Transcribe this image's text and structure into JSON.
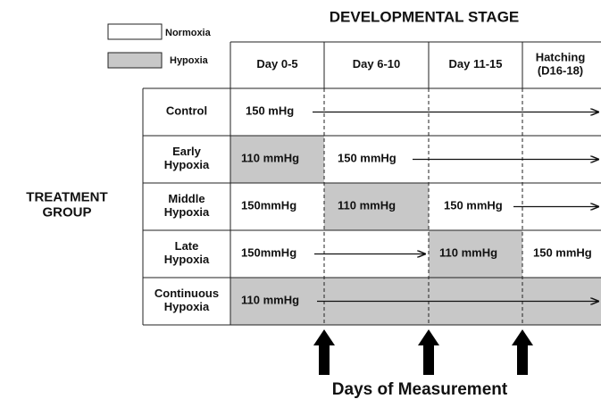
{
  "legend": [
    {
      "label": "Normoxia"
    },
    {
      "label": "Hypoxia"
    }
  ],
  "title": "DEVELOPMENTAL STAGE",
  "columns": [
    "Day 0-5",
    "Day 6-10",
    "Day 11-15",
    "Hatching\n(D16-18)"
  ],
  "side_label": "TREATMENT\nGROUP",
  "rows": [
    {
      "label": "Control",
      "cells": [
        "150 mHg"
      ]
    },
    {
      "label": "Early\nHypoxia",
      "cells": [
        "110 mmHg",
        "150 mmHg"
      ]
    },
    {
      "label": "Middle\nHypoxia",
      "cells": [
        "150mmHg",
        "110 mmHg",
        "150 mmHg"
      ]
    },
    {
      "label": "Late\nHypoxia",
      "cells": [
        "150mmHg",
        "110 mmHg",
        "150 mmHg"
      ]
    },
    {
      "label": "Continuous\nHypoxia",
      "cells": [
        "110 mmHg"
      ]
    }
  ],
  "footer": "Days of Measurement"
}
